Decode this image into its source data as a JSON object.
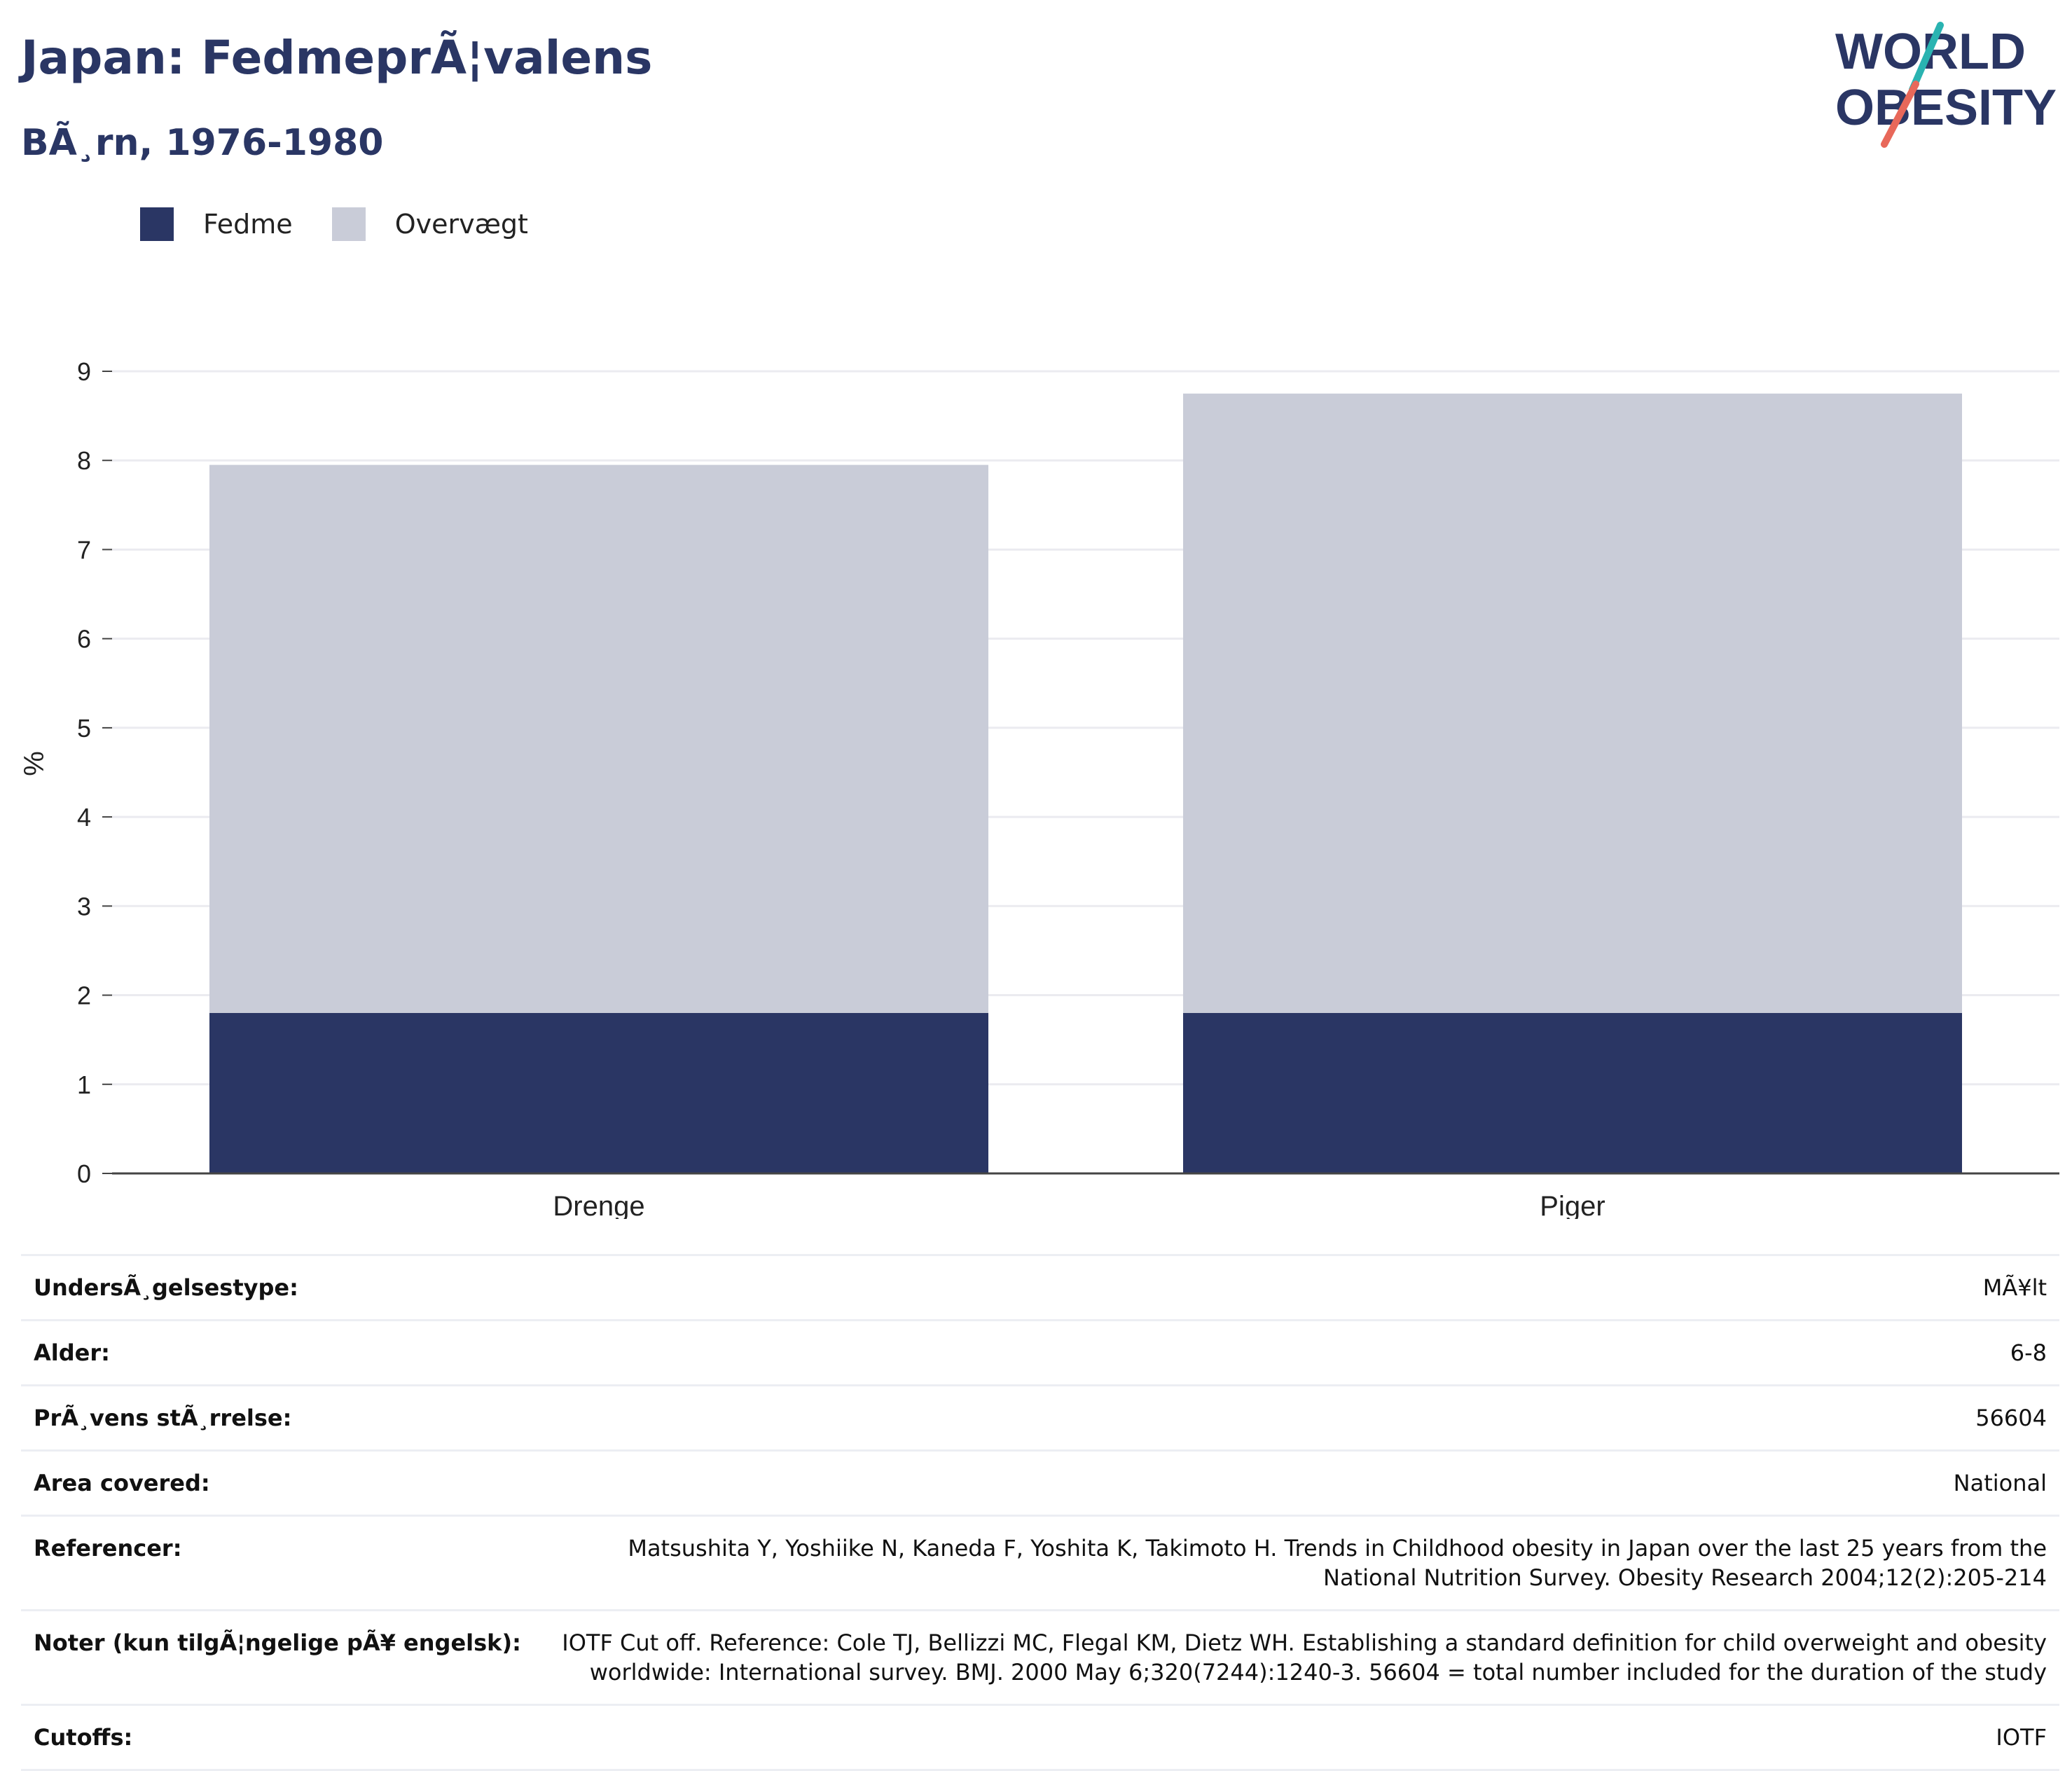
{
  "header": {
    "title": "Japan: FedmeprÃ¦valens",
    "subtitle": "BÃ¸rn, 1976-1980"
  },
  "logo": {
    "line1": "WORLD",
    "line2": "OBESITY"
  },
  "colors": {
    "fedme": "#2a3664",
    "overvaegt": "#c9ccd8",
    "text": "#2a3664",
    "grid": "#ebebf0"
  },
  "chart_data": {
    "type": "bar",
    "stacked": true,
    "categories": [
      "Drenge",
      "Piger"
    ],
    "series": [
      {
        "name": "Fedme",
        "values": [
          1.8,
          1.8
        ]
      },
      {
        "name": "Overvægt",
        "values": [
          6.15,
          6.95
        ]
      }
    ],
    "ylabel": "%",
    "ylim": [
      0,
      9
    ],
    "yticks": [
      "0",
      "1",
      "2",
      "3",
      "4",
      "5",
      "6",
      "7",
      "8",
      "9"
    ],
    "legend": "top-left",
    "grid": true
  },
  "info": [
    {
      "label": "UndersÃ¸gelsestype:",
      "value": "MÃ¥lt"
    },
    {
      "label": "Alder:",
      "value": "6-8"
    },
    {
      "label": "PrÃ¸vens stÃ¸rrelse:",
      "value": "56604"
    },
    {
      "label": "Area covered:",
      "value": "National"
    },
    {
      "label": "Referencer:",
      "value": "Matsushita Y, Yoshiike N, Kaneda F, Yoshita K, Takimoto H. Trends in Childhood obesity in Japan over the last 25 years from the National Nutrition Survey. Obesity Research 2004;12(2):205-214"
    },
    {
      "label": "Noter (kun tilgÃ¦ngelige pÃ¥ engelsk):",
      "value": "IOTF Cut off. Reference: Cole TJ, Bellizzi MC, Flegal KM, Dietz WH. Establishing a standard definition for child overweight and obesity worldwide: International survey. BMJ. 2000 May 6;320(7244):1240-3. 56604 = total number included for the duration of the study"
    },
    {
      "label": "Cutoffs:",
      "value": "IOTF"
    }
  ]
}
